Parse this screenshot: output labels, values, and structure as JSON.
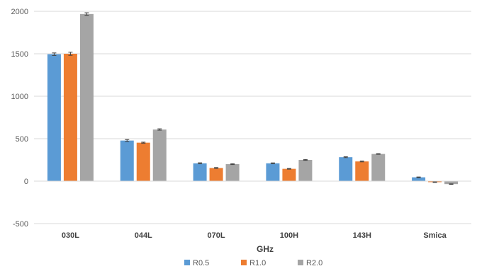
{
  "chart_data": {
    "type": "bar",
    "title": "",
    "xlabel": "GHz",
    "ylabel": "",
    "categories": [
      "030L",
      "044L",
      "070L",
      "100H",
      "143H",
      "Smica"
    ],
    "series": [
      {
        "name": "R0.5",
        "color": "#5B9BD5",
        "values": [
          1495,
          478,
          210,
          210,
          282,
          45
        ],
        "errors": [
          15,
          12,
          6,
          5,
          5,
          4
        ]
      },
      {
        "name": "R1.0",
        "color": "#ED7D31",
        "values": [
          1500,
          453,
          155,
          145,
          232,
          -12
        ],
        "errors": [
          18,
          6,
          5,
          4,
          5,
          3
        ]
      },
      {
        "name": "R2.0",
        "color": "#A5A5A5",
        "values": [
          1968,
          608,
          200,
          250,
          320,
          -35
        ],
        "errors": [
          15,
          8,
          5,
          5,
          4,
          3
        ]
      }
    ],
    "ylim": [
      -500,
      2000
    ],
    "yticks": [
      -500,
      0,
      500,
      1000,
      1500,
      2000
    ],
    "grid": true,
    "legend": "bottom"
  }
}
